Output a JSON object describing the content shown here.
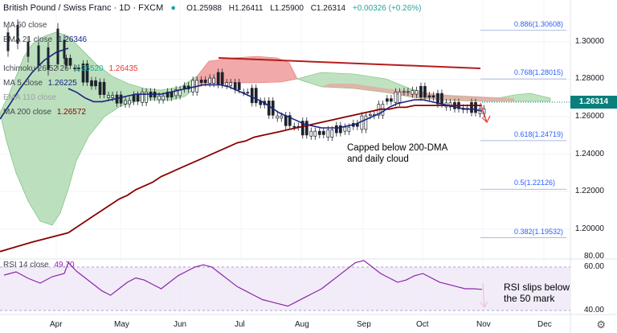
{
  "header": {
    "symbol": "British Pound / Swiss Franc · 1D · FXCM",
    "open": "O1.25988",
    "high": "H1.26411",
    "low": "L1.25900",
    "close": "C1.26314",
    "change": "+0.00326 (+0.26%)"
  },
  "legend": {
    "ma50": "MA 50 close",
    "ema21_label": "EMA 21 close",
    "ema21_value": "1.26346",
    "ichimoku_label": "Ichimoku 26 52 26",
    "ichimoku_v1": "1.26520",
    "ichimoku_v2": "1.26435",
    "ma5_label": "MA 5 close",
    "ma5_value": "1.26225",
    "ema110_label": "EMA 110 close",
    "ma200_label": "MA 200 close",
    "ma200_value": "1.26572",
    "rsi_label": "RSI 14 close",
    "rsi_value": "49.70"
  },
  "annotations": {
    "price_note_1": "Capped below 200-DMA",
    "price_note_2": "and daily cloud",
    "rsi_note_1": "RSI slips below",
    "rsi_note_2": "the 50 mark"
  },
  "price_label": "1.26314",
  "colors": {
    "up": "#26a69a",
    "down": "#ef5350",
    "bar": "#1e222d",
    "ma200": "#8b0000",
    "ema21": "#1a237e",
    "cloud_green": "#a5d6a7",
    "cloud_red": "#ef9a9a",
    "trendline": "#b71c1c",
    "fib": "#2962ff",
    "rsi": "#8e24aa",
    "rsi_band": "#ede7f6"
  },
  "chart_data": {
    "type": "line",
    "title": "British Pound / Swiss Franc · 1D · FXCM",
    "y_ticks": [
      1.3,
      1.28,
      1.26,
      1.24,
      1.22,
      1.2
    ],
    "y_tick_labels": [
      "1.30000",
      "1.28000",
      "1.26000",
      "1.24000",
      "1.22000",
      "1.20000"
    ],
    "ylim": [
      1.187,
      1.318
    ],
    "x_labels": [
      "Apr",
      "May",
      "Jun",
      "Jul",
      "Aug",
      "Sep",
      "Oct",
      "Nov",
      "Dec"
    ],
    "fib_levels": [
      {
        "label": "0.886(1.30608)",
        "value": 1.30608
      },
      {
        "label": "0.768(1.28015)",
        "value": 1.28015
      },
      {
        "label": "0.618(1.24719)",
        "value": 1.24719
      },
      {
        "label": "0.5(1.22126)",
        "value": 1.22126
      },
      {
        "label": "0.382(1.19532)",
        "value": 1.19532
      }
    ],
    "price_close": [
      1.288,
      1.285,
      1.28,
      1.276,
      1.273,
      1.27,
      1.268,
      1.268,
      1.27,
      1.272,
      1.271,
      1.27,
      1.272,
      1.274,
      1.276,
      1.278,
      1.279,
      1.28,
      1.279,
      1.277,
      1.275,
      1.272,
      1.269,
      1.266,
      1.262,
      1.259,
      1.256,
      1.254,
      1.252,
      1.251,
      1.251,
      1.252,
      1.253,
      1.254,
      1.256,
      1.259,
      1.262,
      1.266,
      1.27,
      1.272,
      1.274,
      1.273,
      1.272,
      1.27,
      1.268,
      1.266,
      1.265,
      1.264,
      1.264,
      1.263
    ],
    "series": [
      {
        "name": "MA 200 close",
        "values": [
          1.198,
          1.201,
          1.204,
          1.207,
          1.21,
          1.213,
          1.216,
          1.218,
          1.221,
          1.223,
          1.225,
          1.228,
          1.23,
          1.232,
          1.234,
          1.236,
          1.238,
          1.24,
          1.242,
          1.244,
          1.246,
          1.247,
          1.249,
          1.25,
          1.251,
          1.252,
          1.253,
          1.254,
          1.255,
          1.256,
          1.257,
          1.258,
          1.259,
          1.26,
          1.261,
          1.262,
          1.263,
          1.264,
          1.264,
          1.265,
          1.265,
          1.266,
          1.266,
          1.266,
          1.266,
          1.266,
          1.266,
          1.266,
          1.266,
          1.266
        ]
      },
      {
        "name": "EMA 21 close",
        "values": [
          1.275,
          1.273,
          1.27,
          1.268,
          1.268,
          1.269,
          1.27,
          1.271,
          1.272,
          1.272,
          1.272,
          1.272,
          1.273,
          1.274,
          1.275,
          1.276,
          1.277,
          1.277,
          1.277,
          1.276,
          1.274,
          1.272,
          1.27,
          1.268,
          1.265,
          1.262,
          1.26,
          1.258,
          1.256,
          1.255,
          1.254,
          1.254,
          1.254,
          1.255,
          1.256,
          1.258,
          1.26,
          1.262,
          1.265,
          1.267,
          1.268,
          1.269,
          1.269,
          1.268,
          1.267,
          1.266,
          1.265,
          1.264,
          1.264,
          1.263
        ]
      }
    ],
    "rsi": {
      "ylim": [
        30,
        80
      ],
      "y_ticks": [
        80,
        60,
        40
      ],
      "y_tick_labels": [
        "80.00",
        "60.00",
        "40.00"
      ],
      "values": [
        62,
        58,
        55,
        52,
        49,
        47,
        50,
        53,
        55,
        54,
        52,
        50,
        53,
        56,
        58,
        60,
        61,
        60,
        57,
        54,
        51,
        49,
        47,
        45,
        44,
        43,
        42,
        44,
        46,
        48,
        50,
        53,
        56,
        59,
        62,
        63,
        60,
        57,
        55,
        53,
        54,
        56,
        57,
        55,
        53,
        52,
        51,
        50,
        50,
        49.7
      ]
    }
  }
}
